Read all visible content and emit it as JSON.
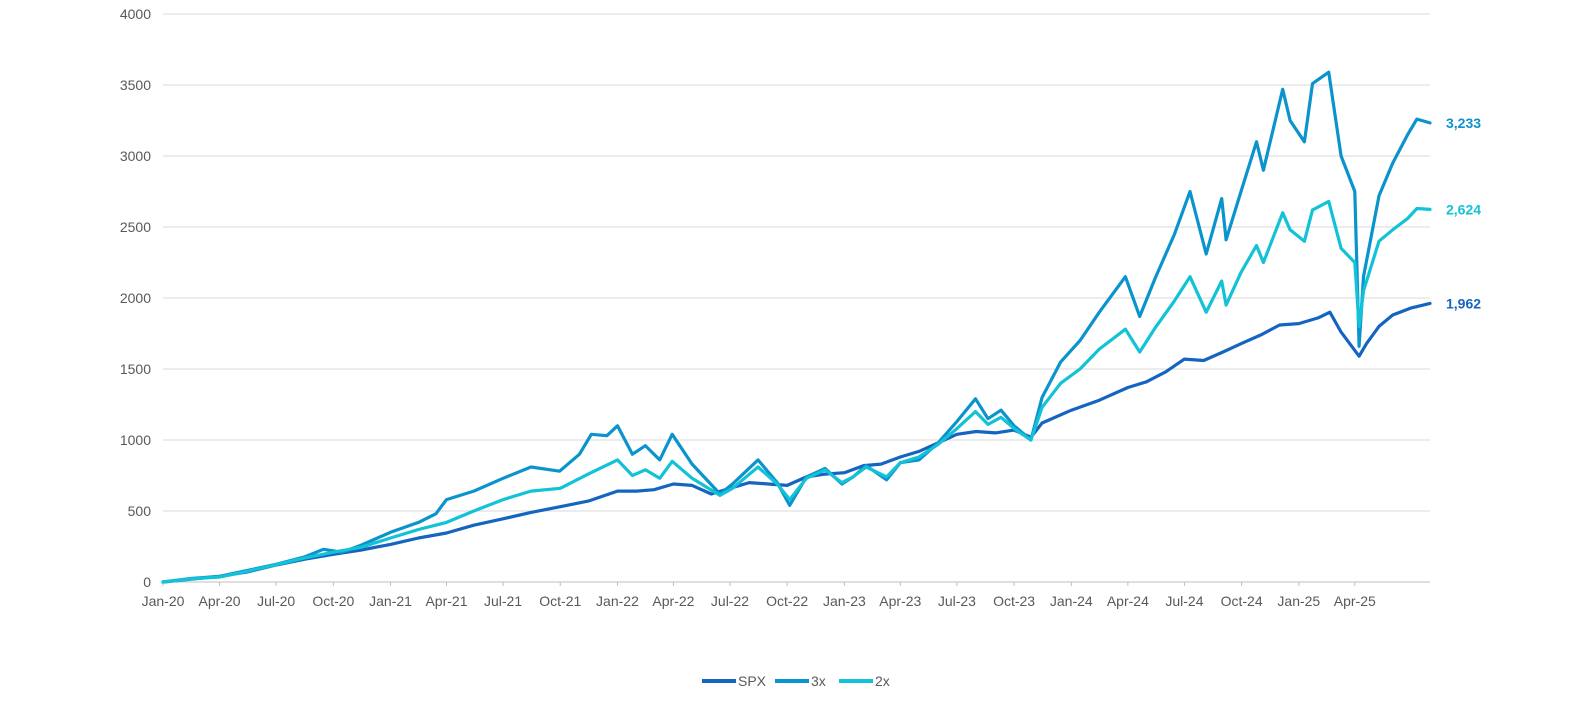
{
  "chart_data": {
    "type": "line",
    "title": "",
    "xlabel": "",
    "ylabel": "",
    "x_ticks": [
      "Jan-20",
      "Apr-20",
      "Jul-20",
      "Oct-20",
      "Jan-21",
      "Apr-21",
      "Jul-21",
      "Oct-21",
      "Jan-22",
      "Apr-22",
      "Jul-22",
      "Oct-22",
      "Jan-23",
      "Apr-23",
      "Jul-23",
      "Oct-23",
      "Jan-24",
      "Apr-24",
      "Jul-24",
      "Oct-24",
      "Jan-25",
      "Apr-25"
    ],
    "y_ticks": [
      0,
      500,
      1000,
      1500,
      2000,
      2500,
      3000,
      3500,
      4000
    ],
    "y_tick_labels": [
      "0",
      "500",
      "1000",
      "1500",
      "2000",
      "2500",
      "3000",
      "3500",
      "4000"
    ],
    "ylim": [
      0,
      4000
    ],
    "xlim": [
      "2020-01-01",
      "2025-07-31"
    ],
    "grid": "horizontal",
    "legend_position": "bottom",
    "series": [
      {
        "name": "SPX",
        "color": "#1565C0",
        "end_label": "1,962",
        "points": [
          [
            "2020-01-01",
            0
          ],
          [
            "2020-02-15",
            20
          ],
          [
            "2020-04-01",
            40
          ],
          [
            "2020-05-15",
            70
          ],
          [
            "2020-07-01",
            120
          ],
          [
            "2020-08-15",
            160
          ],
          [
            "2020-10-01",
            195
          ],
          [
            "2020-11-15",
            225
          ],
          [
            "2021-01-01",
            265
          ],
          [
            "2021-02-15",
            310
          ],
          [
            "2021-04-01",
            345
          ],
          [
            "2021-05-15",
            400
          ],
          [
            "2021-07-01",
            445
          ],
          [
            "2021-08-15",
            490
          ],
          [
            "2021-10-01",
            530
          ],
          [
            "2021-11-15",
            570
          ],
          [
            "2022-01-01",
            640
          ],
          [
            "2022-02-01",
            640
          ],
          [
            "2022-03-01",
            650
          ],
          [
            "2022-04-01",
            690
          ],
          [
            "2022-05-01",
            680
          ],
          [
            "2022-06-01",
            620
          ],
          [
            "2022-07-01",
            660
          ],
          [
            "2022-08-01",
            700
          ],
          [
            "2022-09-01",
            690
          ],
          [
            "2022-10-01",
            680
          ],
          [
            "2022-11-01",
            740
          ],
          [
            "2022-12-01",
            760
          ],
          [
            "2023-01-01",
            770
          ],
          [
            "2023-02-01",
            820
          ],
          [
            "2023-03-01",
            830
          ],
          [
            "2023-04-01",
            880
          ],
          [
            "2023-05-01",
            920
          ],
          [
            "2023-06-01",
            980
          ],
          [
            "2023-07-01",
            1040
          ],
          [
            "2023-08-01",
            1060
          ],
          [
            "2023-09-01",
            1050
          ],
          [
            "2023-10-01",
            1070
          ],
          [
            "2023-10-28",
            1020
          ],
          [
            "2023-11-15",
            1120
          ],
          [
            "2024-01-01",
            1210
          ],
          [
            "2024-02-15",
            1280
          ],
          [
            "2024-04-01",
            1370
          ],
          [
            "2024-05-01",
            1410
          ],
          [
            "2024-06-01",
            1480
          ],
          [
            "2024-07-01",
            1570
          ],
          [
            "2024-08-01",
            1560
          ],
          [
            "2024-09-01",
            1620
          ],
          [
            "2024-10-01",
            1680
          ],
          [
            "2024-11-01",
            1740
          ],
          [
            "2024-12-01",
            1810
          ],
          [
            "2025-01-01",
            1820
          ],
          [
            "2025-02-01",
            1860
          ],
          [
            "2025-02-20",
            1900
          ],
          [
            "2025-03-10",
            1760
          ],
          [
            "2025-04-08",
            1590
          ],
          [
            "2025-04-20",
            1680
          ],
          [
            "2025-05-10",
            1800
          ],
          [
            "2025-06-01",
            1880
          ],
          [
            "2025-07-01",
            1930
          ],
          [
            "2025-07-31",
            1962
          ]
        ]
      },
      {
        "name": "3x",
        "color": "#0A93CC",
        "end_label": "3,233",
        "points": [
          [
            "2020-01-01",
            0
          ],
          [
            "2020-02-15",
            25
          ],
          [
            "2020-04-01",
            40
          ],
          [
            "2020-05-15",
            80
          ],
          [
            "2020-07-01",
            125
          ],
          [
            "2020-08-15",
            175
          ],
          [
            "2020-09-15",
            230
          ],
          [
            "2020-10-15",
            210
          ],
          [
            "2020-11-15",
            260
          ],
          [
            "2021-01-01",
            350
          ],
          [
            "2021-02-15",
            420
          ],
          [
            "2021-03-15",
            480
          ],
          [
            "2021-04-01",
            580
          ],
          [
            "2021-05-15",
            640
          ],
          [
            "2021-07-01",
            730
          ],
          [
            "2021-08-15",
            810
          ],
          [
            "2021-09-30",
            780
          ],
          [
            "2021-11-01",
            900
          ],
          [
            "2021-11-20",
            1040
          ],
          [
            "2021-12-15",
            1030
          ],
          [
            "2022-01-01",
            1100
          ],
          [
            "2022-01-25",
            900
          ],
          [
            "2022-02-15",
            960
          ],
          [
            "2022-03-10",
            860
          ],
          [
            "2022-03-30",
            1040
          ],
          [
            "2022-05-01",
            830
          ],
          [
            "2022-06-15",
            620
          ],
          [
            "2022-07-05",
            690
          ],
          [
            "2022-08-15",
            860
          ],
          [
            "2022-09-15",
            700
          ],
          [
            "2022-10-05",
            540
          ],
          [
            "2022-11-01",
            740
          ],
          [
            "2022-12-01",
            800
          ],
          [
            "2022-12-28",
            690
          ],
          [
            "2023-01-15",
            740
          ],
          [
            "2023-02-05",
            820
          ],
          [
            "2023-03-10",
            720
          ],
          [
            "2023-04-01",
            840
          ],
          [
            "2023-05-01",
            860
          ],
          [
            "2023-06-01",
            980
          ],
          [
            "2023-07-01",
            1130
          ],
          [
            "2023-07-31",
            1290
          ],
          [
            "2023-08-20",
            1150
          ],
          [
            "2023-09-10",
            1210
          ],
          [
            "2023-10-01",
            1100
          ],
          [
            "2023-10-28",
            1000
          ],
          [
            "2023-11-15",
            1300
          ],
          [
            "2023-12-15",
            1550
          ],
          [
            "2024-01-15",
            1700
          ],
          [
            "2024-02-15",
            1900
          ],
          [
            "2024-03-28",
            2150
          ],
          [
            "2024-04-20",
            1870
          ],
          [
            "2024-05-15",
            2140
          ],
          [
            "2024-06-15",
            2450
          ],
          [
            "2024-07-10",
            2750
          ],
          [
            "2024-08-05",
            2310
          ],
          [
            "2024-08-30",
            2700
          ],
          [
            "2024-09-06",
            2410
          ],
          [
            "2024-09-30",
            2750
          ],
          [
            "2024-10-25",
            3100
          ],
          [
            "2024-11-05",
            2900
          ],
          [
            "2024-12-06",
            3470
          ],
          [
            "2024-12-18",
            3250
          ],
          [
            "2025-01-10",
            3100
          ],
          [
            "2025-01-23",
            3510
          ],
          [
            "2025-02-18",
            3590
          ],
          [
            "2025-03-10",
            3000
          ],
          [
            "2025-04-01",
            2750
          ],
          [
            "2025-04-08",
            1660
          ],
          [
            "2025-04-15",
            2150
          ],
          [
            "2025-05-10",
            2720
          ],
          [
            "2025-06-01",
            2950
          ],
          [
            "2025-06-25",
            3150
          ],
          [
            "2025-07-10",
            3260
          ],
          [
            "2025-07-31",
            3233
          ]
        ]
      },
      {
        "name": "2x",
        "color": "#12C2D6",
        "end_label": "2,624",
        "points": [
          [
            "2020-01-01",
            0
          ],
          [
            "2020-02-15",
            22
          ],
          [
            "2020-04-01",
            35
          ],
          [
            "2020-05-15",
            75
          ],
          [
            "2020-07-01",
            122
          ],
          [
            "2020-08-15",
            168
          ],
          [
            "2020-10-01",
            210
          ],
          [
            "2020-11-15",
            245
          ],
          [
            "2021-01-01",
            310
          ],
          [
            "2021-02-15",
            370
          ],
          [
            "2021-04-01",
            420
          ],
          [
            "2021-05-15",
            500
          ],
          [
            "2021-07-01",
            580
          ],
          [
            "2021-08-15",
            640
          ],
          [
            "2021-10-01",
            660
          ],
          [
            "2021-11-15",
            760
          ],
          [
            "2022-01-01",
            860
          ],
          [
            "2022-01-25",
            750
          ],
          [
            "2022-02-15",
            790
          ],
          [
            "2022-03-10",
            730
          ],
          [
            "2022-03-30",
            850
          ],
          [
            "2022-05-01",
            730
          ],
          [
            "2022-06-15",
            610
          ],
          [
            "2022-07-05",
            660
          ],
          [
            "2022-08-15",
            810
          ],
          [
            "2022-09-15",
            690
          ],
          [
            "2022-10-05",
            580
          ],
          [
            "2022-11-01",
            730
          ],
          [
            "2022-12-01",
            790
          ],
          [
            "2022-12-28",
            700
          ],
          [
            "2023-01-15",
            740
          ],
          [
            "2023-02-05",
            810
          ],
          [
            "2023-03-10",
            740
          ],
          [
            "2023-04-01",
            840
          ],
          [
            "2023-05-01",
            880
          ],
          [
            "2023-06-01",
            970
          ],
          [
            "2023-07-01",
            1080
          ],
          [
            "2023-07-31",
            1200
          ],
          [
            "2023-08-20",
            1110
          ],
          [
            "2023-09-10",
            1160
          ],
          [
            "2023-10-01",
            1080
          ],
          [
            "2023-10-28",
            1000
          ],
          [
            "2023-11-15",
            1230
          ],
          [
            "2023-12-15",
            1400
          ],
          [
            "2024-01-15",
            1500
          ],
          [
            "2024-02-15",
            1640
          ],
          [
            "2024-03-28",
            1780
          ],
          [
            "2024-04-20",
            1620
          ],
          [
            "2024-05-15",
            1790
          ],
          [
            "2024-06-15",
            1980
          ],
          [
            "2024-07-10",
            2150
          ],
          [
            "2024-08-05",
            1900
          ],
          [
            "2024-08-30",
            2120
          ],
          [
            "2024-09-06",
            1950
          ],
          [
            "2024-09-30",
            2180
          ],
          [
            "2024-10-25",
            2370
          ],
          [
            "2024-11-05",
            2250
          ],
          [
            "2024-12-06",
            2600
          ],
          [
            "2024-12-18",
            2480
          ],
          [
            "2025-01-10",
            2400
          ],
          [
            "2025-01-23",
            2620
          ],
          [
            "2025-02-18",
            2680
          ],
          [
            "2025-03-10",
            2350
          ],
          [
            "2025-04-01",
            2250
          ],
          [
            "2025-04-08",
            1800
          ],
          [
            "2025-04-15",
            2050
          ],
          [
            "2025-05-10",
            2400
          ],
          [
            "2025-06-01",
            2480
          ],
          [
            "2025-06-25",
            2560
          ],
          [
            "2025-07-10",
            2630
          ],
          [
            "2025-07-31",
            2624
          ]
        ]
      }
    ]
  }
}
